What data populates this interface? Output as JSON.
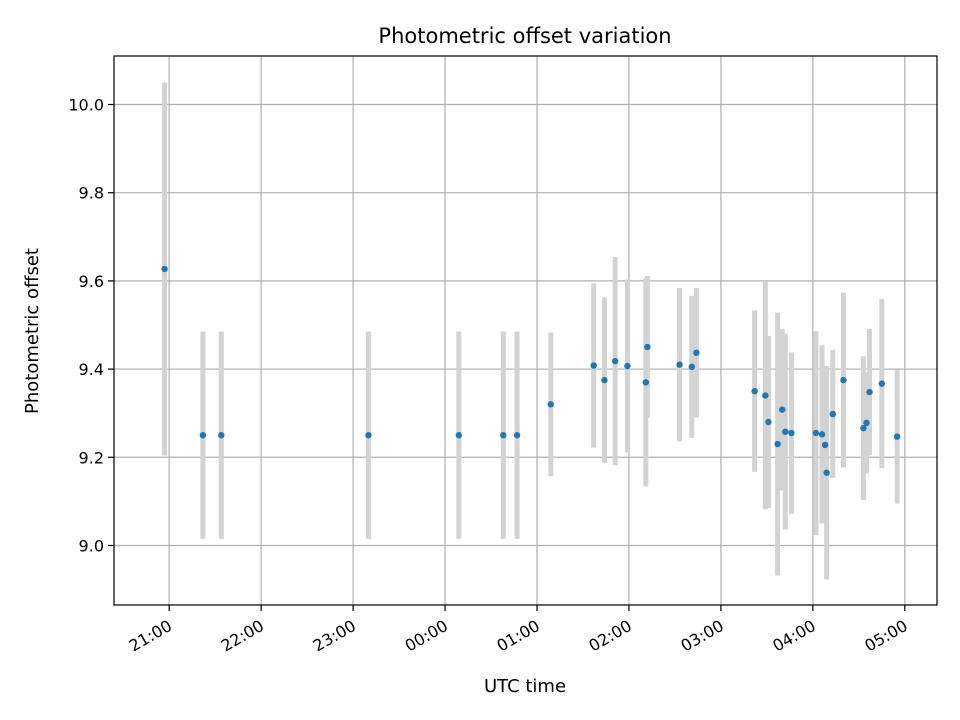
{
  "chart_data": {
    "type": "scatter",
    "title": "Photometric offset variation",
    "xlabel": "UTC time",
    "ylabel": "Photometric offset",
    "x_ticks": [
      "21:00",
      "22:00",
      "23:00",
      "00:00",
      "01:00",
      "02:00",
      "03:00",
      "04:00",
      "05:00"
    ],
    "y_ticks": [
      "9.0",
      "9.2",
      "9.4",
      "9.6",
      "9.8",
      "10.0"
    ],
    "xlim": [
      "20:24",
      "05:21"
    ],
    "ylim": [
      8.865,
      10.11
    ],
    "grid": true,
    "colors": {
      "points": "#1f77b4",
      "errorbars": "#d3d3d3",
      "grid": "#b0b0b0"
    },
    "points": [
      {
        "x": "20:57",
        "y": 9.627,
        "err": 0.423
      },
      {
        "x": "21:22",
        "y": 9.25,
        "err": 0.235
      },
      {
        "x": "21:34",
        "y": 9.25,
        "err": 0.235
      },
      {
        "x": "23:10",
        "y": 9.25,
        "err": 0.235
      },
      {
        "x": "00:09",
        "y": 9.25,
        "err": 0.235
      },
      {
        "x": "00:38",
        "y": 9.25,
        "err": 0.235
      },
      {
        "x": "00:47",
        "y": 9.25,
        "err": 0.235
      },
      {
        "x": "01:09",
        "y": 9.32,
        "err": 0.163
      },
      {
        "x": "01:37",
        "y": 9.408,
        "err": 0.186
      },
      {
        "x": "01:44",
        "y": 9.375,
        "err": 0.188
      },
      {
        "x": "01:51",
        "y": 9.418,
        "err": 0.236
      },
      {
        "x": "01:59",
        "y": 9.407,
        "err": 0.196
      },
      {
        "x": "02:11",
        "y": 9.37,
        "err": 0.236
      },
      {
        "x": "02:12",
        "y": 9.45,
        "err": 0.161
      },
      {
        "x": "02:33",
        "y": 9.41,
        "err": 0.174
      },
      {
        "x": "02:41",
        "y": 9.405,
        "err": 0.161
      },
      {
        "x": "02:44",
        "y": 9.437,
        "err": 0.147
      },
      {
        "x": "03:22",
        "y": 9.35,
        "err": 0.183
      },
      {
        "x": "03:29",
        "y": 9.34,
        "err": 0.258
      },
      {
        "x": "03:31",
        "y": 9.28,
        "err": 0.195
      },
      {
        "x": "03:37",
        "y": 9.23,
        "err": 0.298
      },
      {
        "x": "03:40",
        "y": 9.308,
        "err": 0.183
      },
      {
        "x": "03:42",
        "y": 9.258,
        "err": 0.222
      },
      {
        "x": "03:46",
        "y": 9.255,
        "err": 0.183
      },
      {
        "x": "04:02",
        "y": 9.255,
        "err": 0.231
      },
      {
        "x": "04:06",
        "y": 9.252,
        "err": 0.202
      },
      {
        "x": "04:08",
        "y": 9.228,
        "err": 0.178
      },
      {
        "x": "04:09",
        "y": 9.165,
        "err": 0.242
      },
      {
        "x": "04:13",
        "y": 9.298,
        "err": 0.145
      },
      {
        "x": "04:20",
        "y": 9.375,
        "err": 0.198
      },
      {
        "x": "04:33",
        "y": 9.266,
        "err": 0.163
      },
      {
        "x": "04:35",
        "y": 9.278,
        "err": 0.115
      },
      {
        "x": "04:37",
        "y": 9.348,
        "err": 0.143
      },
      {
        "x": "04:45",
        "y": 9.367,
        "err": 0.192
      },
      {
        "x": "04:55",
        "y": 9.247,
        "err": 0.152
      }
    ]
  }
}
